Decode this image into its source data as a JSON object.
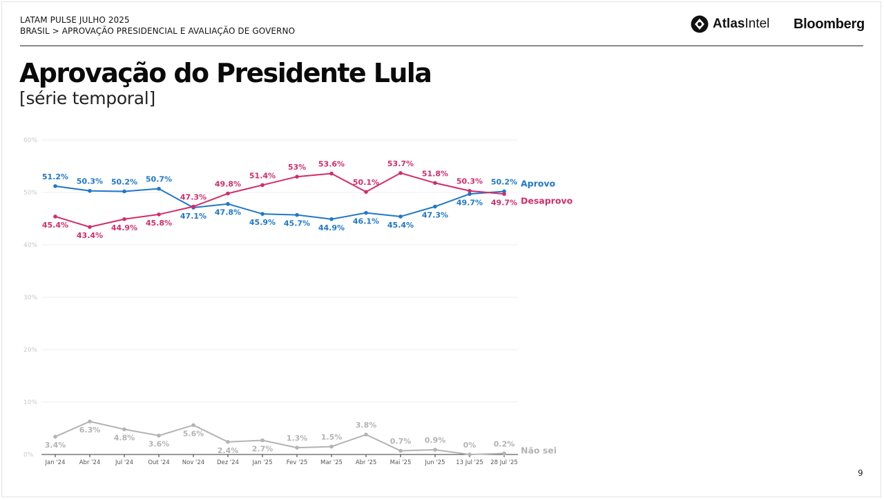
{
  "header": {
    "line1": "LATAM PULSE JULHO 2025",
    "line2": "BRASIL > APROVAÇÃO PRESIDENCIAL E AVALIAÇÃO DE GOVERNO"
  },
  "brands": {
    "atlas_bold": "Atlas",
    "atlas_regular": "Intel",
    "bloomberg": "Bloomberg"
  },
  "page": {
    "title": "Aprovação do Presidente Lula",
    "subtitle": "[série temporal]",
    "number": "9"
  },
  "colors": {
    "aprovo": "#1f77c9",
    "desaprovo": "#d12d6a",
    "nao_sei": "#b3b3b3",
    "grid": "#ececec"
  },
  "chart_data": {
    "type": "line",
    "categories": [
      "Jan '24",
      "Abr '24",
      "Jul '24",
      "Out '24",
      "Nov '24",
      "Dez '24",
      "Jan '25",
      "Fev '25",
      "Mar '25",
      "Abr '25",
      "Mai '25",
      "Jun '25",
      "13 Jul '25",
      "28 Jul '25"
    ],
    "y_ticks": [
      "0%",
      "10%",
      "20%",
      "30%",
      "40%",
      "50%",
      "60%"
    ],
    "ylim": [
      0,
      60
    ],
    "grid": true,
    "legend": "right, labels at line ends",
    "series": [
      {
        "name": "Aprovo",
        "color": "#1f77c9",
        "values": [
          51.2,
          50.3,
          50.2,
          50.7,
          47.1,
          47.8,
          45.9,
          45.7,
          44.9,
          46.1,
          45.4,
          47.3,
          49.7,
          50.2
        ],
        "labels": [
          "51.2%",
          "50.3%",
          "50.2%",
          "50.7%",
          "47.1%",
          "47.8%",
          "45.9%",
          "45.7%",
          "44.9%",
          "46.1%",
          "45.4%",
          "47.3%",
          "49.7%",
          "50.2%"
        ]
      },
      {
        "name": "Desaprovo",
        "color": "#d12d6a",
        "values": [
          45.4,
          43.4,
          44.9,
          45.8,
          47.3,
          49.8,
          51.4,
          53.0,
          53.6,
          50.1,
          53.7,
          51.8,
          50.3,
          49.7
        ],
        "labels": [
          "45.4%",
          "43.4%",
          "44.9%",
          "45.8%",
          "47.3%",
          "49.8%",
          "51.4%",
          "53%",
          "53.6%",
          "50.1%",
          "53.7%",
          "51.8%",
          "50.3%",
          "49.7%"
        ]
      },
      {
        "name": "Não sei",
        "color": "#b3b3b3",
        "values": [
          3.4,
          6.3,
          4.8,
          3.6,
          5.6,
          2.4,
          2.7,
          1.3,
          1.5,
          3.8,
          0.7,
          0.9,
          0.0,
          0.2
        ],
        "labels": [
          "3.4%",
          "6.3%",
          "4.8%",
          "3.6%",
          "5.6%",
          "2.4%",
          "2.7%",
          "1.3%",
          "1.5%",
          "3.8%",
          "0.7%",
          "0.9%",
          "0%",
          "0.2%"
        ]
      }
    ]
  }
}
